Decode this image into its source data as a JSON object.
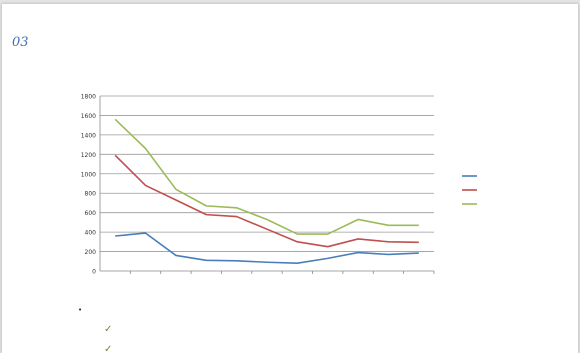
{
  "page": {
    "slide_number": "03",
    "heading": "",
    "corner_note": ""
  },
  "chart_data": {
    "type": "line",
    "title": "",
    "xlabel": "",
    "ylabel": "",
    "categories": [
      "",
      "",
      "",
      "",
      "",
      "",
      "",
      "",
      "",
      "",
      ""
    ],
    "yticks": [
      "0",
      "200",
      "400",
      "600",
      "800",
      "1000",
      "1200",
      "1400",
      "1600",
      "1800"
    ],
    "ylim": [
      0,
      1800
    ],
    "grid": true,
    "legend": "right",
    "series": [
      {
        "name": "",
        "color": "#4a7ebb",
        "values": [
          360,
          390,
          160,
          110,
          105,
          90,
          80,
          130,
          190,
          170,
          185
        ]
      },
      {
        "name": "",
        "color": "#c0504d",
        "values": [
          1190,
          880,
          730,
          580,
          560,
          430,
          300,
          250,
          330,
          300,
          295
        ]
      },
      {
        "name": "",
        "color": "#9bbb59",
        "values": [
          1560,
          1260,
          840,
          670,
          650,
          530,
          380,
          380,
          530,
          470,
          470
        ]
      }
    ]
  },
  "notes": {
    "bullet": "",
    "subitems": [
      "",
      ""
    ]
  }
}
